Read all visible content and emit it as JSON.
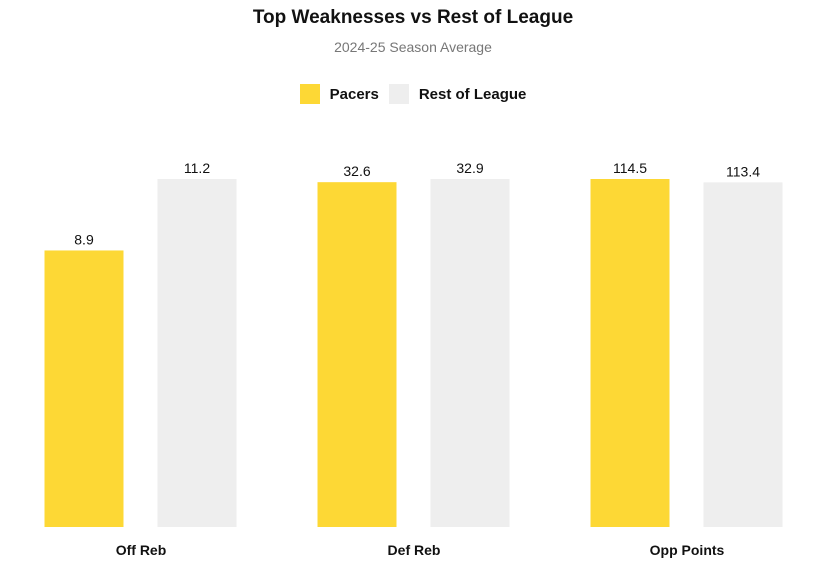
{
  "chart_data": {
    "type": "bar",
    "title": "Top Weaknesses vs Rest of League",
    "subtitle": "2024-25 Season Average",
    "categories": [
      "Off Reb",
      "Def Reb",
      "Opp Points"
    ],
    "categories_display": [
      {
        "label": "Off Reb"
      },
      {
        "label": "Def Reb"
      },
      {
        "label": "Opp Points"
      }
    ],
    "series": [
      {
        "name": "Pacers",
        "color": "#FDD835",
        "values": [
          8.9,
          32.6,
          114.5
        ],
        "labels": [
          "8.9",
          "32.6",
          "114.5"
        ]
      },
      {
        "name": "Rest of League",
        "color": "#EEEEEE",
        "values": [
          11.2,
          32.9,
          113.4
        ],
        "labels": [
          "11.2",
          "32.9",
          "113.4"
        ]
      }
    ],
    "normalization": "each category scaled to its own maximum",
    "grid": false,
    "legend_position": "top"
  }
}
